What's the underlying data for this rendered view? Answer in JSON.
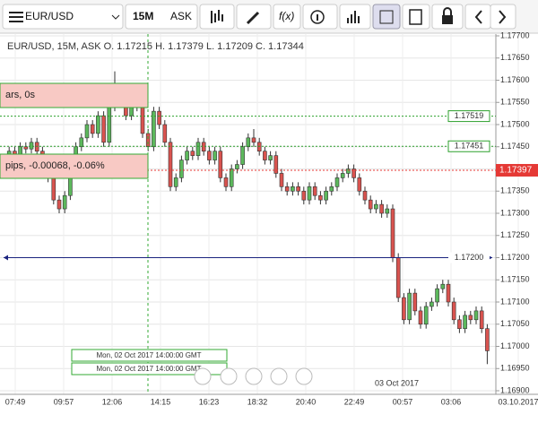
{
  "toolbar": {
    "symbol": "EUR/USD",
    "timeframe": "15M",
    "side": "ASK",
    "fx": "f(x)"
  },
  "chart_data": {
    "type": "candlestick",
    "header": "EUR/USD, 15M, ASK  O. 1.17215 H. 1.17379 L. 1.17209 C. 1.17344",
    "panel_labels": [
      "ars, 0s",
      "pips, -0.00068, -0.06%"
    ],
    "time_labels": [
      "Mon, 02 Oct 2017 14:00:00 GMT",
      "Mon, 02 Oct 2017 14:00:00 GMT"
    ],
    "date_marker": "03 Oct 2017",
    "xtick_labels": [
      "07:49",
      "09:57",
      "12:06",
      "14:15",
      "16:23",
      "18:32",
      "20:40",
      "22:49",
      "00:57",
      "03:06",
      "03.10.2017"
    ],
    "up_color": "#5cb85c",
    "down_color": "#d9534f",
    "ylim": [
      1.169,
      1.177
    ],
    "yticks": [
      {
        "value": 1.177,
        "label": "1.17700"
      },
      {
        "value": 1.1765,
        "label": "1.17650"
      },
      {
        "value": 1.176,
        "label": "1.17600"
      },
      {
        "value": 1.1755,
        "label": "1.17550"
      },
      {
        "value": 1.175,
        "label": "1.17500"
      },
      {
        "value": 1.1745,
        "label": "1.17450"
      },
      {
        "value": 1.174,
        "label": "1.17400"
      },
      {
        "value": 1.1735,
        "label": "1.17350"
      },
      {
        "value": 1.173,
        "label": "1.17300"
      },
      {
        "value": 1.1725,
        "label": "1.17250"
      },
      {
        "value": 1.172,
        "label": "1.17200"
      },
      {
        "value": 1.1715,
        "label": "1.17150"
      },
      {
        "value": 1.171,
        "label": "1.17100"
      },
      {
        "value": 1.1705,
        "label": "1.17050"
      },
      {
        "value": 1.17,
        "label": "1.17000"
      },
      {
        "value": 1.1695,
        "label": "1.16950"
      },
      {
        "value": 1.169,
        "label": "1.16900"
      }
    ],
    "grid": true,
    "levels": [
      {
        "value": 1.17519,
        "label": "1.17519",
        "color": "#2ca02c",
        "style": "dotted"
      },
      {
        "value": 1.17451,
        "label": "1.17451",
        "color": "#2ca02c",
        "style": "dotted"
      },
      {
        "value": 1.17397,
        "label": "1.17397",
        "color": "#e53935",
        "style": "current"
      },
      {
        "value": 1.172,
        "label": "1.17200",
        "color": "#1a237e",
        "style": "solid"
      }
    ],
    "open": [
      1.174,
      1.1742,
      1.1744,
      1.1743,
      1.1745,
      1.17445,
      1.1746,
      1.1744,
      1.1742,
      1.1738,
      1.1733,
      1.1731,
      1.1734,
      1.174,
      1.1745,
      1.1747,
      1.175,
      1.1748,
      1.1752,
      1.1746,
      1.1754,
      1.1758,
      1.1756,
      1.1752,
      1.1755,
      1.1754,
      1.1748,
      1.1745,
      1.1753,
      1.175,
      1.1746,
      1.1736,
      1.1738,
      1.1742,
      1.1744,
      1.1743,
      1.1746,
      1.1744,
      1.1742,
      1.1744,
      1.1738,
      1.1736,
      1.174,
      1.1741,
      1.1745,
      1.1747,
      1.1746,
      1.1744,
      1.1742,
      1.1743,
      1.1739,
      1.1736,
      1.1735,
      1.1736,
      1.1735,
      1.1733,
      1.1736,
      1.1734,
      1.1733,
      1.1735,
      1.1736,
      1.1738,
      1.1739,
      1.174,
      1.1738,
      1.1735,
      1.1733,
      1.1731,
      1.1732,
      1.173,
      1.1731,
      1.172,
      1.1711,
      1.1706,
      1.1712,
      1.1708,
      1.1705,
      1.1709,
      1.171,
      1.1713,
      1.1714,
      1.171,
      1.1706,
      1.1704,
      1.1707,
      1.1706,
      1.1708,
      1.1704
    ],
    "high": [
      1.1743,
      1.1745,
      1.1745,
      1.1746,
      1.1746,
      1.1747,
      1.1747,
      1.1745,
      1.1743,
      1.1739,
      1.1734,
      1.1735,
      1.1741,
      1.1746,
      1.1748,
      1.1751,
      1.1751,
      1.1753,
      1.1753,
      1.1755,
      1.1762,
      1.1759,
      1.1757,
      1.1756,
      1.1756,
      1.1755,
      1.1749,
      1.1754,
      1.1754,
      1.1751,
      1.1747,
      1.1739,
      1.1743,
      1.1745,
      1.1745,
      1.1747,
      1.1747,
      1.1745,
      1.1745,
      1.1745,
      1.1739,
      1.1741,
      1.1742,
      1.1746,
      1.1748,
      1.1749,
      1.1747,
      1.1745,
      1.1744,
      1.1744,
      1.174,
      1.1737,
      1.1737,
      1.1737,
      1.1736,
      1.1737,
      1.1737,
      1.1735,
      1.1736,
      1.1737,
      1.1739,
      1.174,
      1.1741,
      1.1741,
      1.1739,
      1.1736,
      1.1734,
      1.1733,
      1.1733,
      1.1732,
      1.1732,
      1.1721,
      1.1712,
      1.1713,
      1.1713,
      1.1709,
      1.171,
      1.1711,
      1.1714,
      1.1715,
      1.1715,
      1.1711,
      1.1707,
      1.1708,
      1.1708,
      1.1709,
      1.1709,
      1.1705
    ],
    "low": [
      1.1739,
      1.1741,
      1.1742,
      1.1742,
      1.17435,
      1.17435,
      1.1743,
      1.1741,
      1.1737,
      1.1732,
      1.173,
      1.173,
      1.1733,
      1.1739,
      1.1744,
      1.1746,
      1.1747,
      1.1747,
      1.1745,
      1.1745,
      1.1753,
      1.1755,
      1.1751,
      1.1751,
      1.1753,
      1.1747,
      1.1744,
      1.1744,
      1.1749,
      1.1745,
      1.1735,
      1.1735,
      1.1737,
      1.1741,
      1.1742,
      1.1742,
      1.1743,
      1.1741,
      1.1741,
      1.1737,
      1.1735,
      1.1735,
      1.1739,
      1.174,
      1.1744,
      1.1745,
      1.1743,
      1.1741,
      1.1741,
      1.1738,
      1.1735,
      1.1734,
      1.1734,
      1.1734,
      1.1732,
      1.1732,
      1.1733,
      1.1732,
      1.1732,
      1.1734,
      1.1735,
      1.1737,
      1.1738,
      1.1737,
      1.1734,
      1.1732,
      1.173,
      1.173,
      1.1729,
      1.1729,
      1.1719,
      1.171,
      1.1705,
      1.1705,
      1.1707,
      1.1704,
      1.1704,
      1.1708,
      1.1709,
      1.1712,
      1.1709,
      1.1705,
      1.1703,
      1.1703,
      1.1705,
      1.1705,
      1.1703,
      1.1696
    ],
    "close": [
      1.1742,
      1.1744,
      1.1743,
      1.1745,
      1.17445,
      1.1746,
      1.1744,
      1.1742,
      1.1738,
      1.1733,
      1.1731,
      1.1734,
      1.174,
      1.1745,
      1.1747,
      1.175,
      1.1748,
      1.1752,
      1.1746,
      1.1754,
      1.1758,
      1.1756,
      1.1752,
      1.1755,
      1.1754,
      1.1748,
      1.1745,
      1.1753,
      1.175,
      1.1746,
      1.1736,
      1.1738,
      1.1742,
      1.1744,
      1.1743,
      1.1746,
      1.1744,
      1.1742,
      1.1744,
      1.1738,
      1.1736,
      1.174,
      1.1741,
      1.1745,
      1.1747,
      1.1746,
      1.1744,
      1.1742,
      1.1743,
      1.1739,
      1.1736,
      1.1735,
      1.1736,
      1.1735,
      1.1733,
      1.1736,
      1.1734,
      1.1733,
      1.1735,
      1.1736,
      1.1738,
      1.1739,
      1.174,
      1.1738,
      1.1735,
      1.1733,
      1.1731,
      1.1732,
      1.173,
      1.1731,
      1.172,
      1.1711,
      1.1706,
      1.1712,
      1.1708,
      1.1705,
      1.1709,
      1.171,
      1.1713,
      1.1714,
      1.171,
      1.1706,
      1.1704,
      1.1707,
      1.1706,
      1.1708,
      1.1704,
      1.1699
    ]
  }
}
